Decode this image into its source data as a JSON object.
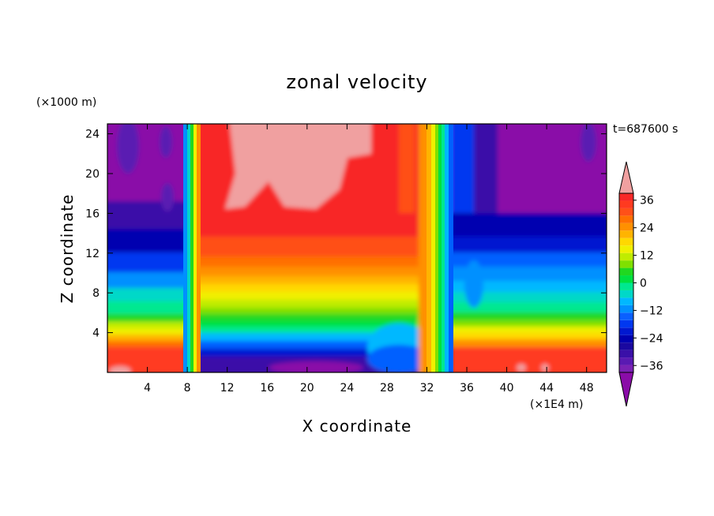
{
  "chart_data": {
    "type": "heatmap",
    "title": "zonal velocity",
    "xlabel": "X coordinate",
    "ylabel": "Z coordinate",
    "x_unit": "(×1E4 m)",
    "y_unit": "(×1000 m)",
    "time_label": "t=687600 s",
    "xlim": [
      0,
      50
    ],
    "ylim": [
      0,
      25
    ],
    "x_ticks": [
      4,
      8,
      12,
      16,
      20,
      24,
      28,
      32,
      36,
      40,
      44,
      48
    ],
    "y_ticks": [
      4,
      8,
      12,
      16,
      20,
      24
    ],
    "colorbar": {
      "levels": [
        -42,
        -39,
        -36,
        -33,
        -30,
        -27,
        -24,
        -21,
        -18,
        -15,
        -12,
        -9,
        -6,
        -3,
        0,
        3,
        6,
        9,
        12,
        15,
        18,
        21,
        24,
        27,
        30,
        33,
        36,
        39,
        42
      ],
      "tick_labels": [
        "36",
        "24",
        "12",
        "0",
        "−12",
        "−24",
        "−36"
      ],
      "tick_values": [
        36,
        24,
        12,
        0,
        -12,
        -24,
        -36
      ],
      "colors": [
        "#8a0ca8",
        "#7a22b4",
        "#5a1ab2",
        "#3a10a8",
        "#1a08a0",
        "#0000b0",
        "#0018d0",
        "#0038f0",
        "#0a60ff",
        "#0090ff",
        "#00b8ff",
        "#00d8c8",
        "#00e890",
        "#00e040",
        "#20d820",
        "#80e000",
        "#c0ec00",
        "#f0f000",
        "#ffd800",
        "#ffb400",
        "#ff9000",
        "#ff7000",
        "#ff5018",
        "#ff3a20",
        "#f82828",
        "#f0a0a0"
      ]
    },
    "features": [
      {
        "name": "westerly-core-upper",
        "x_range": [
          16,
          26
        ],
        "z_range": [
          17,
          25
        ],
        "value_max": 42
      },
      {
        "name": "easterly-core-lower-left",
        "x_range": [
          9,
          25
        ],
        "z_range": [
          0,
          2
        ],
        "value_min": -39
      },
      {
        "name": "easterly-upper-right",
        "x_range": [
          38,
          50
        ],
        "z_range": [
          16,
          25
        ],
        "value_min": -42
      }
    ]
  }
}
